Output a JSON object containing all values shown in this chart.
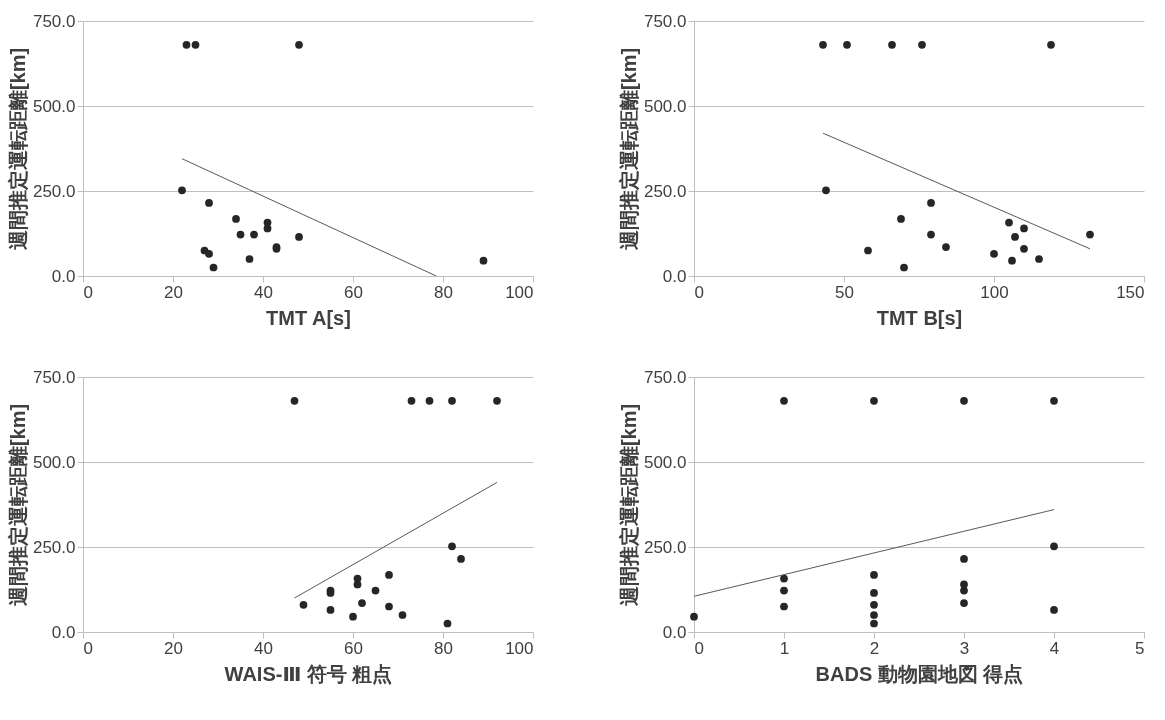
{
  "chart_data": [
    {
      "type": "scatter",
      "xlabel": "TMT A[s]",
      "ylabel": "週間推定運転距離[km]",
      "xlim": [
        0,
        100
      ],
      "xticks": [
        0,
        20,
        40,
        60,
        80,
        100
      ],
      "ylim": [
        0,
        750
      ],
      "yticks": [
        {
          "value": 0,
          "label": "0.0"
        },
        {
          "value": 250,
          "label": "250.0"
        },
        {
          "value": 500,
          "label": "500.0"
        },
        {
          "value": 750,
          "label": "750.0"
        }
      ],
      "grid": "y",
      "series": [
        {
          "marker": "circle",
          "color": "#262626",
          "x": [
            23,
            25,
            48,
            22,
            28,
            34,
            41,
            41,
            35,
            38,
            48,
            43,
            43,
            27,
            28,
            37,
            29,
            89
          ],
          "values": [
            680,
            680,
            680,
            252,
            215,
            168,
            157,
            140,
            122,
            122,
            115,
            85,
            80,
            75,
            65,
            50,
            25,
            45
          ]
        },
        {
          "type": "line",
          "color": "#595959",
          "x": [
            22,
            78.5
          ],
          "values": [
            345,
            0
          ]
        }
      ]
    },
    {
      "type": "scatter",
      "xlabel": "TMT B[s]",
      "ylabel": "週間推定運転距離[km]",
      "xlim": [
        0,
        150
      ],
      "xticks": [
        0,
        50,
        100,
        150
      ],
      "ylim": [
        0,
        750
      ],
      "yticks": [
        {
          "value": 0,
          "label": "0.0"
        },
        {
          "value": 250,
          "label": "250.0"
        },
        {
          "value": 500,
          "label": "500.0"
        },
        {
          "value": 750,
          "label": "750.0"
        }
      ],
      "grid": "y",
      "series": [
        {
          "marker": "circle",
          "color": "#262626",
          "x": [
            43,
            51,
            66,
            76,
            119,
            44,
            79,
            69,
            105,
            110,
            79,
            132,
            107,
            84,
            110,
            58,
            100,
            115,
            106,
            70
          ],
          "values": [
            680,
            680,
            680,
            680,
            680,
            252,
            215,
            168,
            157,
            140,
            122,
            122,
            115,
            85,
            80,
            75,
            65,
            50,
            45,
            25
          ]
        },
        {
          "type": "line",
          "color": "#595959",
          "x": [
            43,
            132
          ],
          "values": [
            420,
            80
          ]
        }
      ]
    },
    {
      "type": "scatter",
      "xlabel": "WAIS-Ⅲ 符号 粗点",
      "ylabel": "週間推定運転距離[km]",
      "xlim": [
        0,
        100
      ],
      "xticks": [
        0,
        20,
        40,
        60,
        80,
        100
      ],
      "ylim": [
        0,
        750
      ],
      "yticks": [
        {
          "value": 0,
          "label": "0.0"
        },
        {
          "value": 250,
          "label": "250.0"
        },
        {
          "value": 500,
          "label": "500.0"
        },
        {
          "value": 750,
          "label": "750.0"
        }
      ],
      "grid": "y",
      "series": [
        {
          "marker": "circle",
          "color": "#262626",
          "x": [
            47,
            73,
            77,
            82,
            92,
            82,
            84,
            68,
            61,
            61,
            55,
            55,
            65,
            62,
            49,
            68,
            55,
            71,
            60,
            81
          ],
          "values": [
            680,
            680,
            680,
            680,
            680,
            252,
            215,
            168,
            157,
            140,
            122,
            115,
            122,
            85,
            80,
            75,
            65,
            50,
            45,
            25
          ]
        },
        {
          "type": "line",
          "color": "#595959",
          "x": [
            47,
            92
          ],
          "values": [
            100,
            440
          ]
        }
      ]
    },
    {
      "type": "scatter",
      "xlabel": "BADS 動物園地図 得点",
      "ylabel": "週間推定運転距離[km]",
      "xlim": [
        0,
        5
      ],
      "xticks": [
        0,
        1,
        2,
        3,
        4,
        5
      ],
      "ylim": [
        0,
        750
      ],
      "yticks": [
        {
          "value": 0,
          "label": "0.0"
        },
        {
          "value": 250,
          "label": "250.0"
        },
        {
          "value": 500,
          "label": "500.0"
        },
        {
          "value": 750,
          "label": "750.0"
        }
      ],
      "grid": "y",
      "series": [
        {
          "marker": "circle",
          "color": "#262626",
          "x": [
            1,
            2,
            3,
            4,
            4,
            3,
            2,
            1,
            3,
            1,
            3,
            2,
            3,
            2,
            1,
            2,
            4,
            2,
            0
          ],
          "values": [
            680,
            680,
            680,
            680,
            252,
            215,
            168,
            157,
            140,
            122,
            122,
            115,
            85,
            80,
            75,
            50,
            65,
            25,
            45
          ]
        },
        {
          "type": "line",
          "color": "#595959",
          "x": [
            0,
            4
          ],
          "values": [
            105,
            360
          ]
        }
      ]
    }
  ]
}
